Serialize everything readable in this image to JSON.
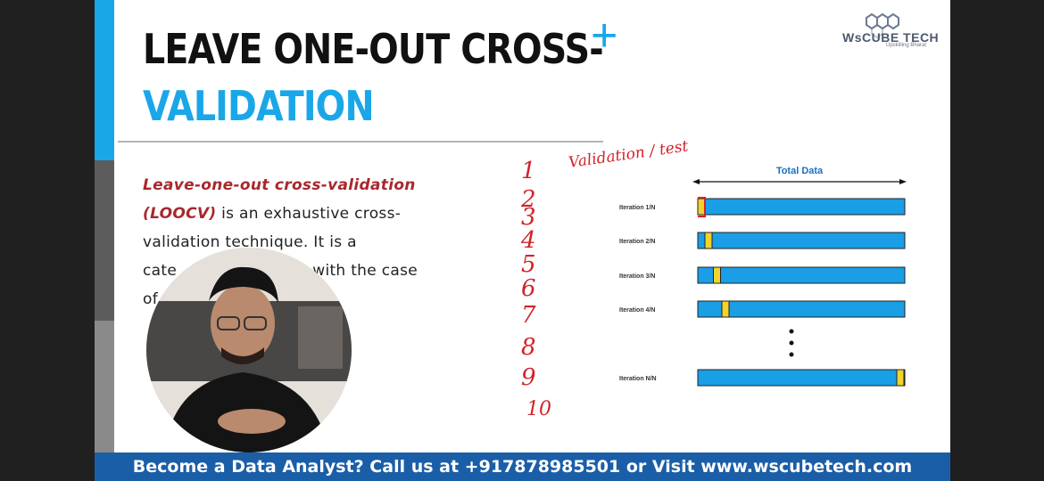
{
  "slide": {
    "title_line1": "LEAVE ONE-OUT CROSS-",
    "title_line2": "VALIDATION",
    "plus_symbol": "+",
    "accent_color": "#1aa7e8",
    "emphasis_color": "#a8282c"
  },
  "logo": {
    "name": "WsCUBE TECH",
    "tagline": "Upskilling Bharat"
  },
  "paragraph": {
    "line1": "Leave-one-out cross-validation",
    "line2_em": "(LOOCV)",
    "line2_rest": " is an exhaustive cross-",
    "line3": "validation technique. It is a",
    "line4_start": "cate",
    "line4_end": "with the case",
    "line5": "of"
  },
  "diagram": {
    "header": "Total Data",
    "bar_color": "#1a9ee6",
    "test_color": "#f2d22e",
    "iterations": [
      {
        "label": "Iteration 1/N",
        "test_index": 0
      },
      {
        "label": "Iteration 2/N",
        "test_index": 1
      },
      {
        "label": "Iteration 3/N",
        "test_index": 2
      },
      {
        "label": "Iteration 4/N",
        "test_index": 3
      },
      {
        "label": "Iteration N/N",
        "test_index": -1
      }
    ]
  },
  "handwriting": {
    "note": "Validation / test",
    "numbers": [
      "1",
      "2",
      "3",
      "4",
      "5",
      "6",
      "7",
      "8",
      "9",
      "10"
    ]
  },
  "banner": {
    "text": "Become a Data Analyst? Call us at +917878985501 or Visit www.wscubetech.com",
    "color": "#1b5ea8"
  }
}
